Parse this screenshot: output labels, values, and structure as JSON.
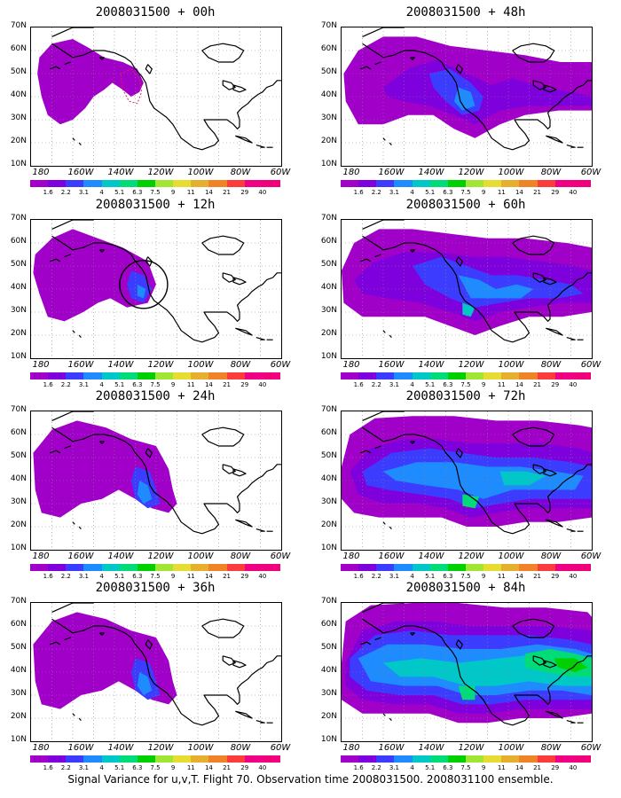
{
  "caption": "Signal Variance for u,v,T. Flight 70. Observation time 2008031500. 2008031100 ensemble.",
  "y_ticks": [
    "70N",
    "60N",
    "50N",
    "40N",
    "30N",
    "20N",
    "10N"
  ],
  "x_ticks": [
    "180",
    "160W",
    "140W",
    "120W",
    "100W",
    "80W",
    "60W"
  ],
  "colorbar": {
    "labels": [
      "1.6",
      "2.2",
      "3.1",
      "4",
      "5.1",
      "6.3",
      "7.5",
      "9",
      "11",
      "14",
      "21",
      "29",
      "40"
    ],
    "colors": [
      "#a000c8",
      "#7e00dc",
      "#3c3cff",
      "#1e8cff",
      "#00c8c8",
      "#00dc78",
      "#00d000",
      "#a0e632",
      "#e6dc32",
      "#e6af2d",
      "#f08228",
      "#fa3c3c",
      "#f00082"
    ]
  },
  "panels": [
    {
      "title": "2008031500 + 00h",
      "level": 1,
      "circle": false,
      "box": true
    },
    {
      "title": "2008031500 + 12h",
      "level": 2,
      "circle": true,
      "box": false
    },
    {
      "title": "2008031500 + 24h",
      "level": 3,
      "circle": false,
      "box": false
    },
    {
      "title": "2008031500 + 36h",
      "level": 3,
      "circle": false,
      "box": false
    },
    {
      "title": "2008031500 + 48h",
      "level": 4,
      "circle": false,
      "box": false
    },
    {
      "title": "2008031500 + 60h",
      "level": 5,
      "circle": false,
      "box": false
    },
    {
      "title": "2008031500 + 72h",
      "level": 6,
      "circle": false,
      "box": false
    },
    {
      "title": "2008031500 + 84h",
      "level": 7,
      "circle": false,
      "box": false
    }
  ]
}
